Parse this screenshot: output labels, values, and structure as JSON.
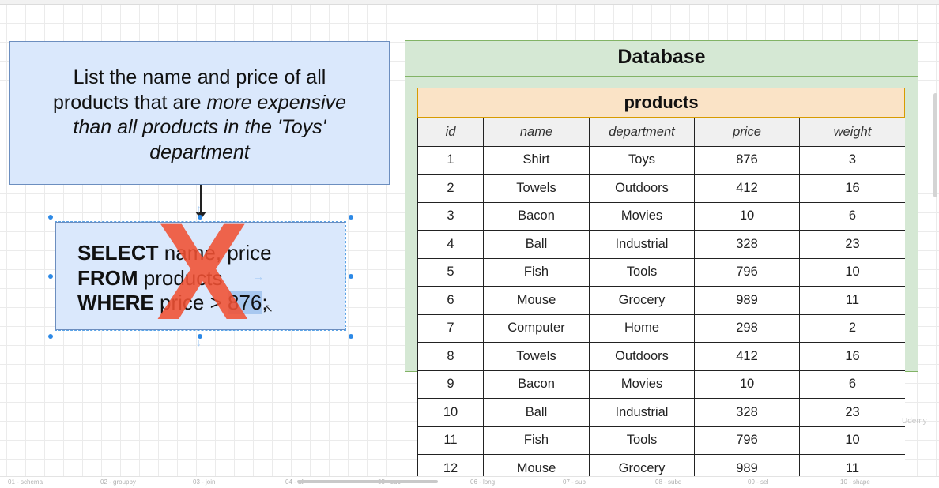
{
  "question": {
    "line1": "List the name and price of all",
    "line2_plain": "products that are ",
    "line2_em": "more expensive",
    "line3_em": "than all products in the 'Toys'",
    "line4_em": "department"
  },
  "sql": {
    "kw_select": "SELECT",
    "select_rest": " name, price",
    "kw_from": "FROM",
    "from_rest": " products",
    "kw_where": "WHERE",
    "where_rest": " price > ",
    "where_value": "876",
    "where_end": ";"
  },
  "overlay": {
    "mark": "X",
    "mark_color": "#f05032"
  },
  "database": {
    "title": "Database",
    "table": {
      "name": "products",
      "columns": [
        "id",
        "name",
        "department",
        "price",
        "weight"
      ],
      "rows": [
        [
          "1",
          "Shirt",
          "Toys",
          "876",
          "3"
        ],
        [
          "2",
          "Towels",
          "Outdoors",
          "412",
          "16"
        ],
        [
          "3",
          "Bacon",
          "Movies",
          "10",
          "6"
        ],
        [
          "4",
          "Ball",
          "Industrial",
          "328",
          "23"
        ],
        [
          "5",
          "Fish",
          "Tools",
          "796",
          "10"
        ],
        [
          "6",
          "Mouse",
          "Grocery",
          "989",
          "11"
        ],
        [
          "7",
          "Computer",
          "Home",
          "298",
          "2"
        ],
        [
          "8",
          "Towels",
          "Outdoors",
          "412",
          "16"
        ],
        [
          "9",
          "Bacon",
          "Movies",
          "10",
          "6"
        ],
        [
          "10",
          "Ball",
          "Industrial",
          "328",
          "23"
        ],
        [
          "11",
          "Fish",
          "Tools",
          "796",
          "10"
        ],
        [
          "12",
          "Mouse",
          "Grocery",
          "989",
          "11"
        ]
      ]
    }
  },
  "page_tabs": [
    "01 - schema",
    "02 - groupby",
    "03 - join",
    "04 - all",
    "05 - sub",
    "06 - long",
    "07 - sub",
    "08 - subq",
    "09 - sel",
    "10 - shape"
  ],
  "watermark": "Udemy",
  "colors": {
    "question_fill": "#dae8fc",
    "question_stroke": "#6c8ebf",
    "db_fill": "#d5e8d4",
    "db_stroke": "#82b366",
    "table_header_fill": "#fae3c6",
    "table_header_stroke": "#d79b00"
  }
}
